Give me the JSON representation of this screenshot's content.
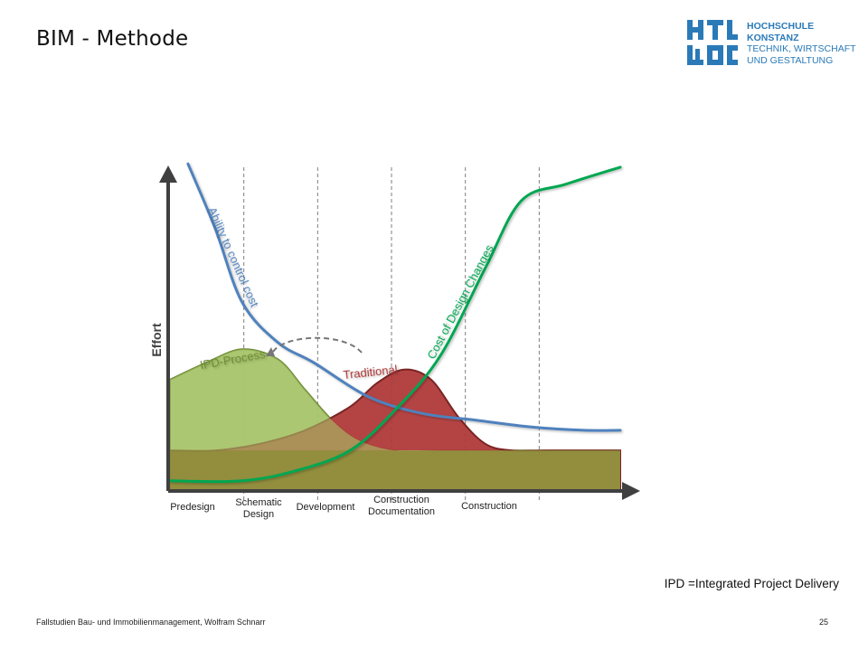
{
  "slide": {
    "title": "BIM - Methode",
    "footnote": "IPD =Integrated Project Delivery",
    "footer_left": "Fallstudien Bau- und Immobilienmanagement, Wolfram Schnarr",
    "page_number": "25"
  },
  "logo": {
    "lines": [
      "HOCHSCHULE",
      "KONSTANZ",
      "TECHNIK, WIRTSCHAFT",
      "UND GESTALTUNG"
    ],
    "color": "#2a7ab8"
  },
  "chart_data": {
    "type": "area",
    "title": "",
    "xlabel": "",
    "ylabel": "Effort",
    "categories": [
      "Predesign",
      "Schematic Design",
      "Development",
      "Construction Documentation",
      "Construction"
    ],
    "x_range": [
      0,
      5
    ],
    "y_range": [
      0,
      1
    ],
    "grid": "dashed vertical phase separators",
    "series": [
      {
        "name": "IPD-Process",
        "type": "area",
        "color": "#9bbb59",
        "x": [
          0,
          0.4,
          0.8,
          1.2,
          1.5,
          1.8,
          2.1,
          2.5,
          3,
          3.5,
          4,
          4.5,
          5
        ],
        "y": [
          0.33,
          0.38,
          0.42,
          0.39,
          0.3,
          0.21,
          0.15,
          0.12,
          0.12,
          0.12,
          0.12,
          0.12,
          0.12
        ]
      },
      {
        "name": "Traditional",
        "type": "area",
        "color": "#b03a3a",
        "x": [
          0,
          0.5,
          1,
          1.5,
          2,
          2.3,
          2.6,
          2.9,
          3.2,
          3.5,
          3.8,
          4.2,
          5
        ],
        "y": [
          0.12,
          0.12,
          0.14,
          0.18,
          0.25,
          0.32,
          0.36,
          0.33,
          0.22,
          0.14,
          0.12,
          0.12,
          0.12
        ]
      },
      {
        "name": "Ability to control cost",
        "type": "line",
        "color": "#4f81bd",
        "x": [
          0.2,
          0.5,
          0.8,
          1.2,
          1.6,
          2.2,
          2.8,
          3.4,
          4,
          4.6,
          5
        ],
        "y": [
          0.97,
          0.78,
          0.56,
          0.44,
          0.38,
          0.28,
          0.23,
          0.21,
          0.19,
          0.18,
          0.18
        ]
      },
      {
        "name": "Cost of Design Changes",
        "type": "line",
        "color": "#00a651",
        "x": [
          0,
          0.8,
          1.4,
          2,
          2.5,
          3,
          3.5,
          3.9,
          4.4,
          5
        ],
        "y": [
          0.03,
          0.03,
          0.06,
          0.12,
          0.24,
          0.4,
          0.66,
          0.86,
          0.91,
          0.96
        ]
      }
    ]
  }
}
